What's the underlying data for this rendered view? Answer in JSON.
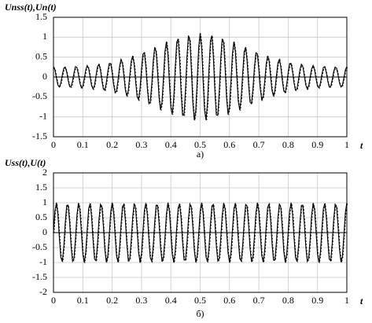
{
  "chart_data": [
    {
      "type": "line",
      "ylabel": "Unss(t),Un(t)",
      "xlabel": "t",
      "caption": "а)",
      "xlim": [
        0,
        1
      ],
      "ylim": [
        -1.5,
        1.5
      ],
      "xticks": [
        0,
        0.1,
        0.2,
        0.3,
        0.4,
        0.5,
        0.6,
        0.7,
        0.8,
        0.9,
        1
      ],
      "yticks": [
        -1.5,
        -1,
        -0.5,
        0,
        0.5,
        1,
        1.5
      ],
      "grid": true,
      "x": [
        0,
        0.005,
        0.01,
        0.015,
        0.02,
        0.025,
        0.03,
        0.035,
        0.04,
        0.045,
        0.05,
        0.055,
        0.06,
        0.065,
        0.07,
        0.075,
        0.08,
        0.085,
        0.09,
        0.095,
        0.1,
        0.105,
        0.11,
        0.115,
        0.12,
        0.125,
        0.13,
        0.135,
        0.14,
        0.145,
        0.15,
        0.155,
        0.16,
        0.165,
        0.17,
        0.175,
        0.18,
        0.185,
        0.19,
        0.195,
        0.2,
        0.205,
        0.21,
        0.215,
        0.22,
        0.225,
        0.23,
        0.235,
        0.24,
        0.245,
        0.25,
        0.255,
        0.26,
        0.265,
        0.27,
        0.275,
        0.28,
        0.285,
        0.29,
        0.295,
        0.3,
        0.305,
        0.31,
        0.315,
        0.32,
        0.325,
        0.33,
        0.335,
        0.34,
        0.345,
        0.35,
        0.355,
        0.36,
        0.365,
        0.37,
        0.375,
        0.38,
        0.385,
        0.39,
        0.395,
        0.4,
        0.405,
        0.41,
        0.415,
        0.42,
        0.425,
        0.43,
        0.435,
        0.44,
        0.445,
        0.45,
        0.455,
        0.46,
        0.465,
        0.47,
        0.475,
        0.48,
        0.485,
        0.49,
        0.495,
        0.5,
        0.505,
        0.51,
        0.515,
        0.52,
        0.525,
        0.53,
        0.535,
        0.54,
        0.545,
        0.55,
        0.555,
        0.56,
        0.565,
        0.57,
        0.575,
        0.58,
        0.585,
        0.59,
        0.595,
        0.6,
        0.605,
        0.61,
        0.615,
        0.62,
        0.625,
        0.63,
        0.635,
        0.64,
        0.645,
        0.65,
        0.655,
        0.66,
        0.665,
        0.67,
        0.675,
        0.68,
        0.685,
        0.69,
        0.695,
        0.7,
        0.705,
        0.71,
        0.715,
        0.72,
        0.725,
        0.73,
        0.735,
        0.74,
        0.745,
        0.75,
        0.755,
        0.76,
        0.765,
        0.77,
        0.775,
        0.78,
        0.785,
        0.79,
        0.795,
        0.8,
        0.805,
        0.81,
        0.815,
        0.82,
        0.825,
        0.83,
        0.835,
        0.84,
        0.845,
        0.85,
        0.855,
        0.86,
        0.865,
        0.87,
        0.875,
        0.88,
        0.885,
        0.89,
        0.895,
        0.9,
        0.905,
        0.91,
        0.915,
        0.92,
        0.925,
        0.93,
        0.935,
        0.94,
        0.945,
        0.95,
        0.955,
        0.96,
        0.965,
        0.97,
        0.975,
        0.98,
        0.985,
        0.99,
        0.995,
        1
      ],
      "series": [
        {
          "color": "#000000",
          "values": [
            0.26,
            0.18,
            -0.02,
            -0.2,
            -0.25,
            -0.15,
            0.05,
            0.22,
            0.25,
            0.13,
            -0.08,
            -0.24,
            -0.25,
            -0.1,
            0.11,
            0.26,
            0.24,
            0.07,
            -0.15,
            -0.27,
            -0.23,
            -0.04,
            0.18,
            0.29,
            0.21,
            0,
            -0.22,
            -0.3,
            -0.2,
            0.04,
            0.26,
            0.32,
            0.18,
            -0.08,
            -0.3,
            -0.33,
            -0.15,
            0.13,
            0.34,
            0.34,
            0.12,
            -0.19,
            -0.39,
            -0.35,
            -0.08,
            0.25,
            0.44,
            0.35,
            0.03,
            -0.32,
            -0.48,
            -0.34,
            0.03,
            0.4,
            0.53,
            0.32,
            -0.11,
            -0.49,
            -0.57,
            -0.29,
            0.19,
            0.58,
            0.61,
            0.25,
            -0.29,
            -0.67,
            -0.63,
            -0.18,
            0.4,
            0.75,
            0.63,
            0.1,
            -0.52,
            -0.83,
            -0.62,
            0,
            0.64,
            0.89,
            0.58,
            -0.12,
            -0.76,
            -0.94,
            -0.52,
            0.24,
            0.87,
            0.96,
            0.43,
            -0.38,
            -0.96,
            -0.95,
            -0.33,
            0.51,
            1.04,
            0.91,
            0.2,
            -0.64,
            -1.08,
            -0.84,
            -0.07,
            0.75,
            1.1,
            0.75,
            -0.07,
            -0.84,
            -1.08,
            -0.64,
            0.2,
            0.91,
            1.04,
            0.51,
            -0.33,
            -0.95,
            -0.96,
            -0.38,
            0.43,
            0.96,
            0.87,
            0.24,
            -0.52,
            -0.94,
            -0.76,
            -0.12,
            0.58,
            0.89,
            0.64,
            0,
            -0.62,
            -0.83,
            -0.52,
            0.1,
            0.63,
            0.75,
            0.4,
            -0.18,
            -0.63,
            -0.67,
            -0.29,
            0.25,
            0.61,
            0.58,
            0.19,
            -0.29,
            -0.57,
            -0.49,
            -0.11,
            0.32,
            0.53,
            0.4,
            0.03,
            -0.34,
            -0.48,
            -0.32,
            0.03,
            0.35,
            0.44,
            0.25,
            -0.08,
            -0.35,
            -0.39,
            -0.19,
            0.12,
            0.34,
            0.34,
            0.13,
            -0.15,
            -0.33,
            -0.3,
            -0.08,
            0.18,
            0.32,
            0.26,
            0.04,
            -0.2,
            -0.3,
            -0.22,
            0,
            0.21,
            0.29,
            0.18,
            -0.04,
            -0.23,
            -0.27,
            -0.15,
            0.07,
            0.24,
            0.26,
            0.11,
            -0.1,
            -0.25,
            -0.24,
            -0.08,
            0.13,
            0.25,
            0.22,
            0.05,
            -0.15,
            -0.25,
            -0.2,
            -0.02,
            0.18,
            0.26
          ]
        }
      ]
    },
    {
      "type": "line",
      "ylabel": "Uss(t),U(t)",
      "xlabel": "t",
      "caption": "б)",
      "xlim": [
        0,
        1
      ],
      "ylim": [
        -2,
        2
      ],
      "xticks": [
        0,
        0.1,
        0.2,
        0.3,
        0.4,
        0.5,
        0.6,
        0.7,
        0.8,
        0.9,
        1
      ],
      "yticks": [
        -2,
        -1.5,
        -1,
        -0.5,
        0,
        0.5,
        1,
        1.5,
        2
      ],
      "grid": true,
      "x": [
        0,
        0.005,
        0.01,
        0.015,
        0.02,
        0.025,
        0.03,
        0.035,
        0.04,
        0.045,
        0.05,
        0.055,
        0.06,
        0.065,
        0.07,
        0.075,
        0.08,
        0.085,
        0.09,
        0.095,
        0.1,
        0.105,
        0.11,
        0.115,
        0.12,
        0.125,
        0.13,
        0.135,
        0.14,
        0.145,
        0.15,
        0.155,
        0.16,
        0.165,
        0.17,
        0.175,
        0.18,
        0.185,
        0.19,
        0.195,
        0.2,
        0.205,
        0.21,
        0.215,
        0.22,
        0.225,
        0.23,
        0.235,
        0.24,
        0.245,
        0.25,
        0.255,
        0.26,
        0.265,
        0.27,
        0.275,
        0.28,
        0.285,
        0.29,
        0.295,
        0.3,
        0.305,
        0.31,
        0.315,
        0.32,
        0.325,
        0.33,
        0.335,
        0.34,
        0.345,
        0.35,
        0.355,
        0.36,
        0.365,
        0.37,
        0.375,
        0.38,
        0.385,
        0.39,
        0.395,
        0.4,
        0.405,
        0.41,
        0.415,
        0.42,
        0.425,
        0.43,
        0.435,
        0.44,
        0.445,
        0.45,
        0.455,
        0.46,
        0.465,
        0.47,
        0.475,
        0.48,
        0.485,
        0.49,
        0.495,
        0.5,
        0.505,
        0.51,
        0.515,
        0.52,
        0.525,
        0.53,
        0.535,
        0.54,
        0.545,
        0.55,
        0.555,
        0.56,
        0.565,
        0.57,
        0.575,
        0.58,
        0.585,
        0.59,
        0.595,
        0.6,
        0.605,
        0.61,
        0.615,
        0.62,
        0.625,
        0.63,
        0.635,
        0.64,
        0.645,
        0.65,
        0.655,
        0.66,
        0.665,
        0.67,
        0.675,
        0.68,
        0.685,
        0.69,
        0.695,
        0.7,
        0.705,
        0.71,
        0.715,
        0.72,
        0.725,
        0.73,
        0.735,
        0.74,
        0.745,
        0.75,
        0.755,
        0.76,
        0.765,
        0.77,
        0.775,
        0.78,
        0.785,
        0.79,
        0.795,
        0.8,
        0.805,
        0.81,
        0.815,
        0.82,
        0.825,
        0.83,
        0.835,
        0.84,
        0.845,
        0.85,
        0.855,
        0.86,
        0.865,
        0.87,
        0.875,
        0.88,
        0.885,
        0.89,
        0.895,
        0.9,
        0.905,
        0.91,
        0.915,
        0.92,
        0.925,
        0.93,
        0.935,
        0.94,
        0.945,
        0.95,
        0.955,
        0.96,
        0.965,
        0.97,
        0.975,
        0.98,
        0.985,
        0.99,
        0.995,
        1
      ],
      "series": [
        {
          "color": "#000000",
          "values": [
            0,
            0.73,
            1,
            0.62,
            -0.16,
            -0.83,
            -0.97,
            -0.49,
            0.31,
            0.91,
            0.92,
            0.35,
            -0.45,
            -0.96,
            -0.85,
            -0.2,
            0.59,
            0.99,
            0.76,
            0.04,
            -0.71,
            -1,
            -0.65,
            0.12,
            0.81,
            0.98,
            0.52,
            -0.27,
            -0.89,
            -0.94,
            -0.38,
            0.42,
            0.95,
            0.87,
            0.23,
            -0.56,
            -0.99,
            -0.79,
            -0.08,
            0.68,
            1,
            0.68,
            -0.08,
            -0.79,
            -0.99,
            -0.56,
            0.23,
            0.87,
            0.95,
            0.42,
            -0.38,
            -0.94,
            -0.89,
            -0.27,
            0.52,
            0.98,
            0.81,
            0.12,
            -0.65,
            -1,
            -0.71,
            0.04,
            0.76,
            0.99,
            0.59,
            -0.2,
            -0.85,
            -0.96,
            -0.45,
            0.35,
            0.92,
            0.91,
            0.31,
            -0.49,
            -0.97,
            -0.83,
            -0.16,
            0.62,
            1,
            0.73,
            0,
            -0.73,
            -1,
            -0.62,
            0.16,
            0.83,
            0.97,
            0.49,
            -0.31,
            -0.91,
            -0.92,
            -0.35,
            0.45,
            0.96,
            0.85,
            0.2,
            -0.59,
            -0.99,
            -0.76,
            -0.04,
            0.71,
            1,
            0.65,
            -0.12,
            -0.81,
            -0.98,
            -0.52,
            0.27,
            0.89,
            0.94,
            0.38,
            -0.42,
            -0.95,
            -0.87,
            -0.23,
            0.56,
            0.99,
            0.79,
            0.08,
            -0.68,
            -1,
            -0.68,
            0.08,
            0.79,
            0.99,
            0.56,
            -0.23,
            -0.87,
            -0.95,
            -0.42,
            0.38,
            0.94,
            0.89,
            0.27,
            -0.52,
            -0.98,
            -0.81,
            -0.12,
            0.65,
            1,
            0.71,
            -0.04,
            -0.76,
            -0.99,
            -0.59,
            0.2,
            0.85,
            0.96,
            0.45,
            -0.35,
            -0.92,
            -0.91,
            -0.31,
            0.49,
            0.97,
            0.83,
            0.16,
            -0.62,
            -1,
            -0.73,
            0,
            0.73,
            1,
            0.62,
            -0.16,
            -0.83,
            -0.97,
            -0.49,
            0.31,
            0.91,
            0.92,
            0.35,
            -0.45,
            -0.96,
            -0.85,
            -0.2,
            0.59,
            0.99,
            0.76,
            0.04,
            -0.71,
            -1,
            -0.65,
            0.12,
            0.81,
            0.98,
            0.52,
            -0.27,
            -0.89,
            -0.94,
            -0.38,
            0.42,
            0.95,
            0.87,
            0.23,
            -0.56,
            -0.99,
            -0.79,
            -0.08,
            0.68,
            1
          ]
        }
      ]
    }
  ]
}
